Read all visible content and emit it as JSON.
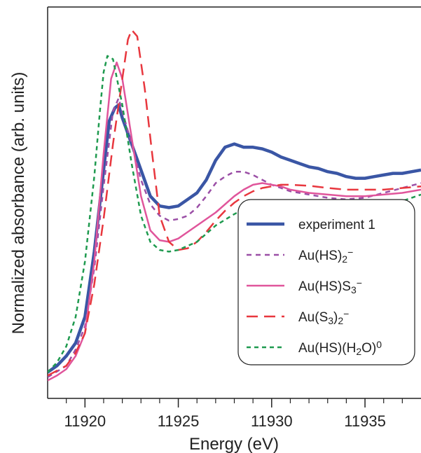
{
  "chart_data": {
    "type": "line",
    "title": "",
    "xlabel": "Energy (eV)",
    "ylabel": "Normalized absorbance (arb. units)",
    "xlim": [
      11918,
      11938
    ],
    "ylim": [
      0,
      1.2
    ],
    "x_ticks_major": [
      11920,
      11925,
      11930,
      11935
    ],
    "x_ticks_minor": [
      11919,
      11921,
      11922,
      11923,
      11924,
      11926,
      11927,
      11928,
      11929,
      11931,
      11932,
      11933,
      11934,
      11936,
      11937
    ],
    "y_ticks": [],
    "grid": false,
    "legend_position": "lower-right",
    "series": [
      {
        "name": "experiment 1",
        "label_parts": [
          [
            "experiment 1",
            "n"
          ]
        ],
        "color": "#3a56a5",
        "dash": "solid",
        "width": 4.5,
        "points": [
          [
            11918,
            0.08
          ],
          [
            11918.5,
            0.1
          ],
          [
            11919,
            0.13
          ],
          [
            11919.5,
            0.17
          ],
          [
            11920,
            0.25
          ],
          [
            11920.5,
            0.45
          ],
          [
            11921,
            0.7
          ],
          [
            11921.3,
            0.85
          ],
          [
            11921.6,
            0.89
          ],
          [
            11921.8,
            0.9
          ],
          [
            11922,
            0.86
          ],
          [
            11922.5,
            0.78
          ],
          [
            11923,
            0.7
          ],
          [
            11923.5,
            0.62
          ],
          [
            11924,
            0.59
          ],
          [
            11924.5,
            0.585
          ],
          [
            11925,
            0.59
          ],
          [
            11925.5,
            0.61
          ],
          [
            11926,
            0.63
          ],
          [
            11926.5,
            0.67
          ],
          [
            11927,
            0.73
          ],
          [
            11927.5,
            0.77
          ],
          [
            11928,
            0.78
          ],
          [
            11928.5,
            0.77
          ],
          [
            11929,
            0.77
          ],
          [
            11929.5,
            0.765
          ],
          [
            11930,
            0.755
          ],
          [
            11930.5,
            0.74
          ],
          [
            11931,
            0.73
          ],
          [
            11931.5,
            0.72
          ],
          [
            11932,
            0.71
          ],
          [
            11932.5,
            0.705
          ],
          [
            11933,
            0.695
          ],
          [
            11933.5,
            0.69
          ],
          [
            11934,
            0.68
          ],
          [
            11934.5,
            0.675
          ],
          [
            11935,
            0.675
          ],
          [
            11935.5,
            0.68
          ],
          [
            11936,
            0.685
          ],
          [
            11936.5,
            0.69
          ],
          [
            11937,
            0.69
          ],
          [
            11937.5,
            0.695
          ],
          [
            11938,
            0.7
          ]
        ]
      },
      {
        "name": "Au(HS)2−",
        "label_parts": [
          [
            "Au(HS)",
            "n"
          ],
          [
            "2",
            "sub"
          ],
          [
            "−",
            "sup"
          ]
        ],
        "color": "#9b4fa6",
        "dash": "7,6",
        "width": 2.5,
        "points": [
          [
            11918,
            0.065
          ],
          [
            11919,
            0.1
          ],
          [
            11919.5,
            0.15
          ],
          [
            11920,
            0.22
          ],
          [
            11920.5,
            0.4
          ],
          [
            11921,
            0.65
          ],
          [
            11921.5,
            0.88
          ],
          [
            11921.8,
            0.92
          ],
          [
            11922,
            0.88
          ],
          [
            11922.5,
            0.78
          ],
          [
            11923,
            0.67
          ],
          [
            11923.5,
            0.595
          ],
          [
            11924,
            0.56
          ],
          [
            11924.5,
            0.545
          ],
          [
            11925,
            0.55
          ],
          [
            11925.5,
            0.56
          ],
          [
            11926,
            0.585
          ],
          [
            11926.5,
            0.62
          ],
          [
            11927,
            0.66
          ],
          [
            11927.5,
            0.68
          ],
          [
            11928,
            0.695
          ],
          [
            11928.5,
            0.695
          ],
          [
            11929,
            0.685
          ],
          [
            11929.5,
            0.67
          ],
          [
            11930,
            0.655
          ],
          [
            11930.5,
            0.645
          ],
          [
            11931,
            0.635
          ],
          [
            11932,
            0.625
          ],
          [
            11933,
            0.615
          ],
          [
            11934,
            0.61
          ],
          [
            11935,
            0.615
          ],
          [
            11936,
            0.63
          ],
          [
            11937,
            0.645
          ],
          [
            11938,
            0.66
          ]
        ]
      },
      {
        "name": "Au(HS)S3−",
        "label_parts": [
          [
            "Au(HS)S",
            "n"
          ],
          [
            "3",
            "sub"
          ],
          [
            "−",
            "sup"
          ]
        ],
        "color": "#e0559b",
        "dash": "solid",
        "width": 2.5,
        "points": [
          [
            11918,
            0.055
          ],
          [
            11918.5,
            0.07
          ],
          [
            11919,
            0.09
          ],
          [
            11919.5,
            0.13
          ],
          [
            11920,
            0.2
          ],
          [
            11920.5,
            0.42
          ],
          [
            11921,
            0.75
          ],
          [
            11921.4,
            0.98
          ],
          [
            11921.7,
            1.03
          ],
          [
            11922,
            0.98
          ],
          [
            11922.5,
            0.8
          ],
          [
            11923,
            0.62
          ],
          [
            11923.5,
            0.515
          ],
          [
            11924,
            0.485
          ],
          [
            11924.5,
            0.48
          ],
          [
            11925,
            0.49
          ],
          [
            11925.5,
            0.51
          ],
          [
            11926,
            0.53
          ],
          [
            11927,
            0.57
          ],
          [
            11928,
            0.62
          ],
          [
            11928.5,
            0.64
          ],
          [
            11929,
            0.655
          ],
          [
            11929.5,
            0.66
          ],
          [
            11930,
            0.655
          ],
          [
            11930.5,
            0.65
          ],
          [
            11931,
            0.64
          ],
          [
            11932,
            0.63
          ],
          [
            11933,
            0.625
          ],
          [
            11934,
            0.62
          ],
          [
            11935,
            0.62
          ],
          [
            11936,
            0.625
          ],
          [
            11937,
            0.63
          ],
          [
            11938,
            0.64
          ]
        ]
      },
      {
        "name": "Au(S3)2−",
        "label_parts": [
          [
            "Au(S",
            "n"
          ],
          [
            "3",
            "sub"
          ],
          [
            ")",
            "n"
          ],
          [
            "2",
            "sub"
          ],
          [
            "−",
            "sup"
          ]
        ],
        "color": "#e8373e",
        "dash": "16,9",
        "width": 2.5,
        "points": [
          [
            11918,
            0.07
          ],
          [
            11919,
            0.1
          ],
          [
            11919.5,
            0.14
          ],
          [
            11920,
            0.2
          ],
          [
            11920.5,
            0.35
          ],
          [
            11921,
            0.55
          ],
          [
            11921.5,
            0.78
          ],
          [
            11922,
            0.98
          ],
          [
            11922.3,
            1.1
          ],
          [
            11922.5,
            1.13
          ],
          [
            11922.8,
            1.11
          ],
          [
            11923.2,
            0.95
          ],
          [
            11923.6,
            0.75
          ],
          [
            11924,
            0.56
          ],
          [
            11924.5,
            0.48
          ],
          [
            11925,
            0.455
          ],
          [
            11925.5,
            0.46
          ],
          [
            11926,
            0.48
          ],
          [
            11926.5,
            0.51
          ],
          [
            11927,
            0.545
          ],
          [
            11927.5,
            0.575
          ],
          [
            11928,
            0.6
          ],
          [
            11928.5,
            0.62
          ],
          [
            11929,
            0.635
          ],
          [
            11929.5,
            0.645
          ],
          [
            11930,
            0.65
          ],
          [
            11930.5,
            0.655
          ],
          [
            11931,
            0.655
          ],
          [
            11932,
            0.652
          ],
          [
            11933,
            0.645
          ],
          [
            11934,
            0.64
          ],
          [
            11935,
            0.64
          ],
          [
            11936,
            0.64
          ],
          [
            11937,
            0.645
          ],
          [
            11938,
            0.65
          ]
        ]
      },
      {
        "name": "Au(HS)(H2O)0",
        "label_parts": [
          [
            "Au(HS)(H",
            "n"
          ],
          [
            "2",
            "sub"
          ],
          [
            "O)",
            "n"
          ],
          [
            "0",
            "sup"
          ]
        ],
        "color": "#1f9a4f",
        "dash": "6,5",
        "width": 2.5,
        "points": [
          [
            11918,
            0.08
          ],
          [
            11918.5,
            0.11
          ],
          [
            11919,
            0.16
          ],
          [
            11919.5,
            0.25
          ],
          [
            11920,
            0.42
          ],
          [
            11920.5,
            0.68
          ],
          [
            11920.8,
            0.88
          ],
          [
            11921,
            1.0
          ],
          [
            11921.2,
            1.05
          ],
          [
            11921.5,
            1.04
          ],
          [
            11922,
            0.9
          ],
          [
            11922.5,
            0.72
          ],
          [
            11923,
            0.56
          ],
          [
            11923.5,
            0.48
          ],
          [
            11924,
            0.455
          ],
          [
            11924.5,
            0.45
          ],
          [
            11925,
            0.455
          ],
          [
            11926,
            0.48
          ],
          [
            11927,
            0.53
          ],
          [
            11928,
            0.565
          ],
          [
            11928.5,
            0.58
          ],
          [
            11929,
            0.588
          ],
          [
            11929.5,
            0.59
          ],
          [
            11930,
            0.585
          ],
          [
            11930.5,
            0.575
          ],
          [
            11931,
            0.565
          ],
          [
            11932,
            0.555
          ],
          [
            11933,
            0.55
          ],
          [
            11934,
            0.555
          ],
          [
            11935,
            0.565
          ],
          [
            11936,
            0.585
          ],
          [
            11937,
            0.605
          ],
          [
            11938,
            0.625
          ]
        ]
      }
    ]
  }
}
